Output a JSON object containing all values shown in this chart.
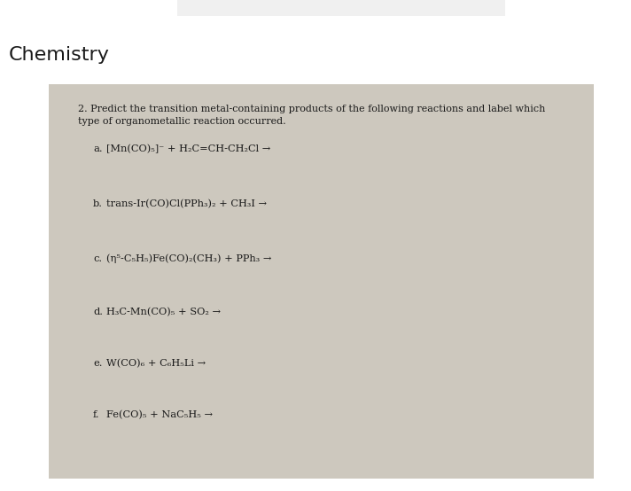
{
  "title": "Chemistry",
  "title_fontsize": 16,
  "title_color": "#1a1a1a",
  "bg_color": "#ffffff",
  "card_color": "#cdc8be",
  "header_text_line1": "2. Predict the transition metal-containing products of the following reactions and label which",
  "header_text_line2": "type of organometallic reaction occurred.",
  "header_fontsize": 8.0,
  "reactions": [
    {
      "label": "a.",
      "text": "[Mn(CO)₅]⁻ + H₂C=CH-CH₂Cl →"
    },
    {
      "label": "b.",
      "text": "trans-Ir(CO)Cl(PPh₃)₂ + CH₃I →"
    },
    {
      "label": "c.",
      "text": "(η⁵-C₅H₅)Fe(CO)₂(CH₃) + PPh₃ →"
    },
    {
      "label": "d.",
      "text": "H₃C-Mn(CO)₅ + SO₂ →"
    },
    {
      "label": "e.",
      "text": "W(CO)₆ + C₆H₅Li →"
    },
    {
      "label": "f.",
      "text": "Fe(CO)₅ + NaC₅H₅ →"
    }
  ],
  "reaction_fontsize": 8.2,
  "text_color": "#1a1a1a"
}
